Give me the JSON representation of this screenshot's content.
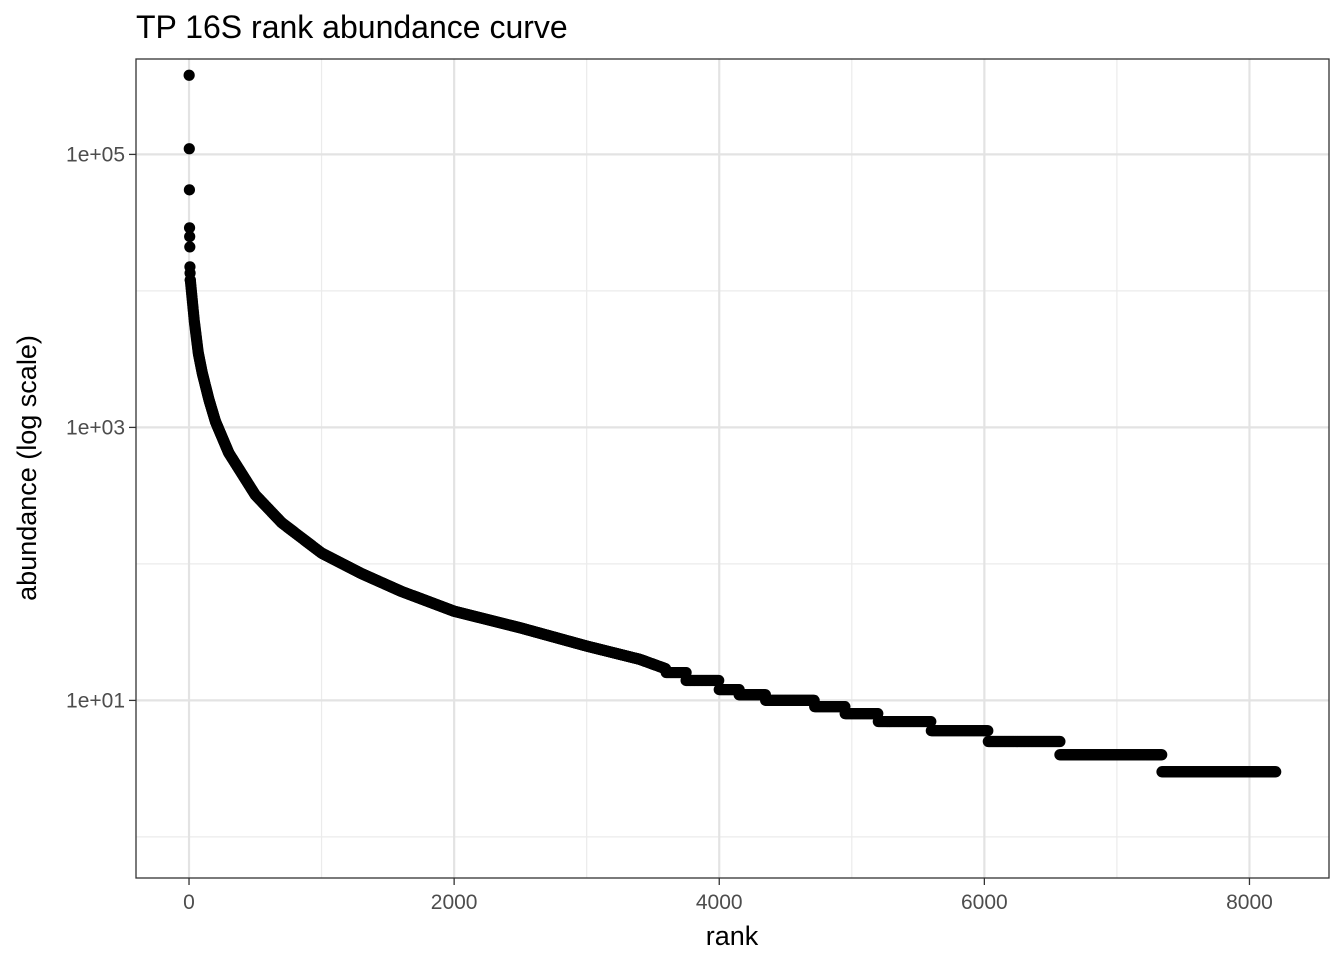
{
  "chart_data": {
    "type": "scatter",
    "title": "TP 16S rank abundance curve",
    "xlabel": "rank",
    "ylabel": "abundance (log scale)",
    "xlim": [
      -400,
      8600
    ],
    "ylim": [
      0.5,
      500000
    ],
    "y_scale": "log10",
    "x_ticks": [
      0,
      2000,
      4000,
      6000,
      8000
    ],
    "x_tick_labels": [
      "0",
      "2000",
      "4000",
      "6000",
      "8000"
    ],
    "x_minor_ticks": [
      1000,
      3000,
      5000,
      7000
    ],
    "y_ticks": [
      10,
      1000,
      100000
    ],
    "y_tick_labels": [
      "1e+01",
      "1e+03",
      "1e+05"
    ],
    "y_minor_ticks": [
      1,
      100,
      10000
    ],
    "grid": true,
    "legend": "none",
    "point_color": "#000000",
    "total_ranks": 8200,
    "top_points": [
      {
        "rank": 1,
        "abundance": 380000
      },
      {
        "rank": 2,
        "abundance": 110000
      },
      {
        "rank": 3,
        "abundance": 55000
      },
      {
        "rank": 4,
        "abundance": 29000
      },
      {
        "rank": 5,
        "abundance": 25000
      },
      {
        "rank": 6,
        "abundance": 21000
      },
      {
        "rank": 7,
        "abundance": 15000
      },
      {
        "rank": 8,
        "abundance": 13500
      },
      {
        "rank": 9,
        "abundance": 12000
      }
    ],
    "curve": [
      {
        "rank": 10,
        "abundance": 12000
      },
      {
        "rank": 20,
        "abundance": 9500
      },
      {
        "rank": 40,
        "abundance": 6000
      },
      {
        "rank": 70,
        "abundance": 3500
      },
      {
        "rank": 100,
        "abundance": 2500
      },
      {
        "rank": 150,
        "abundance": 1600
      },
      {
        "rank": 200,
        "abundance": 1100
      },
      {
        "rank": 300,
        "abundance": 650
      },
      {
        "rank": 500,
        "abundance": 320
      },
      {
        "rank": 700,
        "abundance": 200
      },
      {
        "rank": 1000,
        "abundance": 120
      },
      {
        "rank": 1300,
        "abundance": 85
      },
      {
        "rank": 1600,
        "abundance": 63
      },
      {
        "rank": 2000,
        "abundance": 45
      },
      {
        "rank": 2500,
        "abundance": 34
      },
      {
        "rank": 3000,
        "abundance": 25
      },
      {
        "rank": 3400,
        "abundance": 20
      },
      {
        "rank": 3600,
        "abundance": 17
      }
    ],
    "plateaus": [
      {
        "abundance": 16,
        "from_rank": 3600,
        "to_rank": 3750
      },
      {
        "abundance": 14,
        "from_rank": 3750,
        "to_rank": 4000
      },
      {
        "abundance": 12,
        "from_rank": 4000,
        "to_rank": 4150
      },
      {
        "abundance": 11,
        "from_rank": 4150,
        "to_rank": 4350
      },
      {
        "abundance": 10,
        "from_rank": 4350,
        "to_rank": 4720
      },
      {
        "abundance": 9,
        "from_rank": 4720,
        "to_rank": 4950
      },
      {
        "abundance": 8,
        "from_rank": 4950,
        "to_rank": 5200
      },
      {
        "abundance": 7,
        "from_rank": 5200,
        "to_rank": 5600
      },
      {
        "abundance": 6,
        "from_rank": 5600,
        "to_rank": 6030
      },
      {
        "abundance": 5,
        "from_rank": 6030,
        "to_rank": 6570
      },
      {
        "abundance": 4,
        "from_rank": 6570,
        "to_rank": 7340
      },
      {
        "abundance": 3,
        "from_rank": 7340,
        "to_rank": 8200
      }
    ]
  }
}
